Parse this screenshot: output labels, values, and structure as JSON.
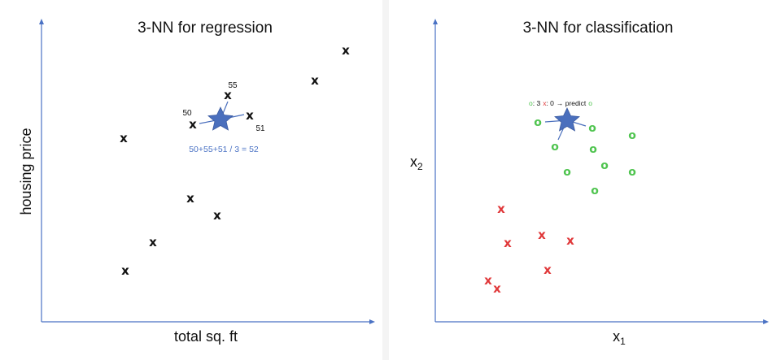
{
  "left": {
    "title": "3-NN for regression",
    "xlabel": "total sq. ft",
    "ylabel": "housing price",
    "mark": "x",
    "neighbor_values": [
      "50",
      "55",
      "51"
    ],
    "calculation": "50+55+51 / 3 = 52",
    "point_count": 10
  },
  "right": {
    "title": "3-NN for classification",
    "xlabel_main": "x",
    "xlabel_sub": "1",
    "ylabel_main": "x",
    "ylabel_sub": "2",
    "x_mark": "x",
    "o_mark": "o",
    "prediction": {
      "o_symbol": "o",
      "count_o": ": 3",
      "x_symbol": "x",
      "count_x": ": 0",
      "arrow": "→ predict",
      "result_symbol": "o"
    },
    "x_count": 8,
    "o_count": 10
  },
  "colors": {
    "axis": "#4a72c4",
    "star": "#4a6fbd",
    "star_stroke": "#3a5aa0",
    "class_x": "#e0383a",
    "class_o": "#4fc44f",
    "calc_text": "#4a72c4",
    "background": "#f4f4f4"
  },
  "icons": {
    "query_point": "star-icon"
  }
}
